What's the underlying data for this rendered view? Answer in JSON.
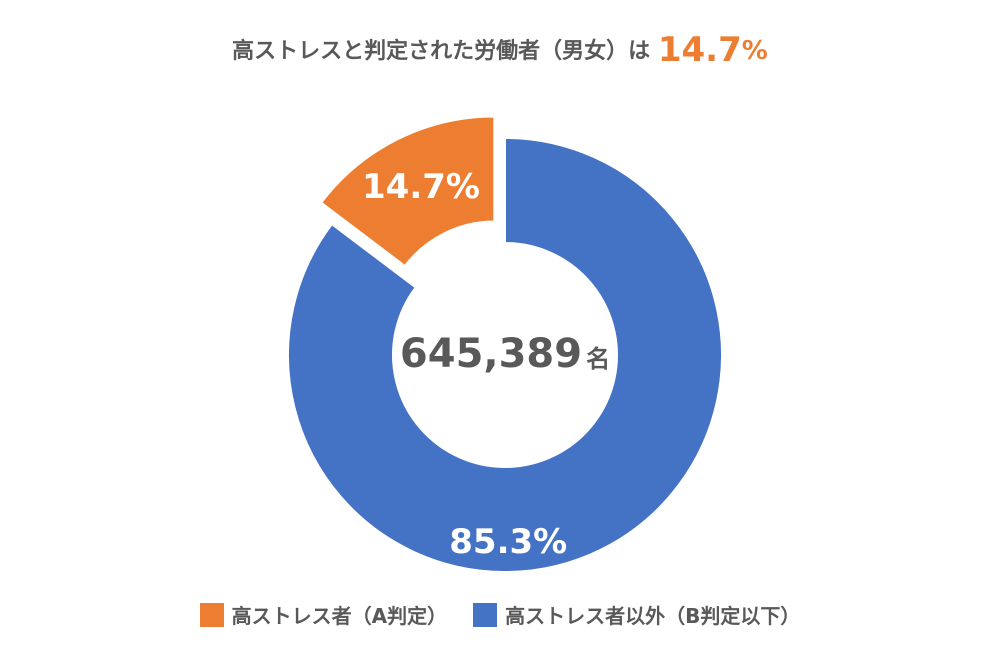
{
  "title": {
    "prefix": "高ストレスと判定された労働者（男女）は",
    "highlight": "14.7",
    "suffix": "%"
  },
  "center_label": {
    "number": "645,389",
    "unit": "名"
  },
  "colors": {
    "high_stress": "#ED7D31",
    "other": "#4472C4",
    "text": "#595959"
  },
  "chart_data": {
    "type": "pie",
    "variant": "donut",
    "slices": [
      {
        "name": "高ストレス者（A判定）",
        "value": 14.7,
        "label": "14.7%",
        "color": "#ED7D31",
        "exploded": true
      },
      {
        "name": "高ストレス者以外（B判定以下）",
        "value": 85.3,
        "label": "85.3%",
        "color": "#4472C4",
        "exploded": false
      }
    ],
    "legend_position": "bottom"
  }
}
